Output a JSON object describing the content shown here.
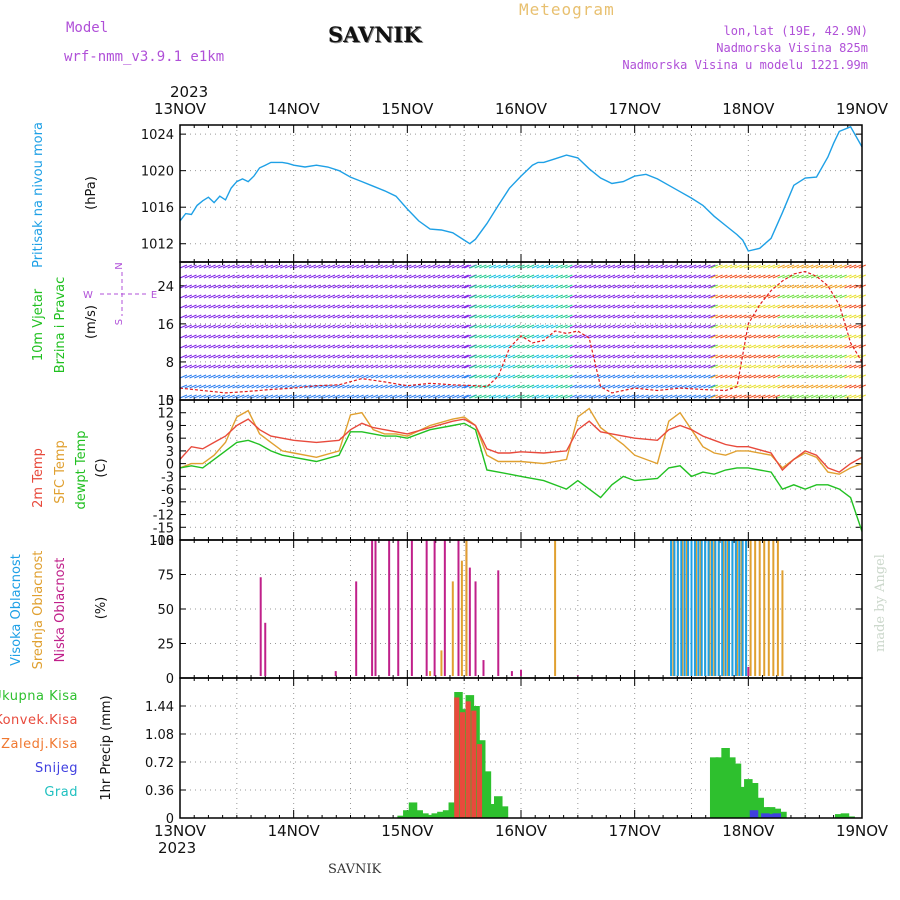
{
  "header": {
    "model_label": "Model",
    "model_name": "wrf-nmm_v3.9.1  e1km",
    "station": "SAVNIK",
    "meteogram_label": "Meteogram",
    "lonlat": "lon,lat (19E, 42.9N)",
    "elevation": "Nadmorska Visina 825m",
    "model_elevation": "Nadmorska Visina u modelu 1221.99m",
    "year_top": "2023",
    "year_bottom": "2023",
    "footer_station": "SAVNIK",
    "credit": "made by Angel"
  },
  "colors": {
    "pressure": "#1ea0e6",
    "t2m": "#e84a3c",
    "tsfc": "#e0a030",
    "dewpt": "#22c022",
    "high_cloud": "#1ea0e6",
    "mid_cloud": "#e0a030",
    "low_cloud": "#c0208a",
    "total_precip": "#2ec02e",
    "conv_precip": "#e84a3c",
    "frozen_precip": "#f07830",
    "snow": "#4040e0",
    "hail": "#20c0c0",
    "wind_purple": "#8a2be2"
  },
  "chart_data": [
    {
      "type": "line",
      "id": "pressure",
      "title": "",
      "ylabel_left": "Pritisak na nivou mora",
      "ylabel_unit": "(hPa)",
      "x_ticks": [
        "13NOV",
        "14NOV",
        "15NOV",
        "16NOV",
        "17NOV",
        "18NOV",
        "19NOV"
      ],
      "ylim": [
        1010,
        1025
      ],
      "y_ticks": [
        1012,
        1016,
        1020,
        1024
      ],
      "grid": true,
      "series": [
        {
          "key": "pressure",
          "x": [
            0,
            0.05,
            0.1,
            0.15,
            0.2,
            0.25,
            0.3,
            0.35,
            0.4,
            0.45,
            0.5,
            0.55,
            0.6,
            0.65,
            0.7,
            0.75,
            0.8,
            0.85,
            0.9,
            0.95,
            1.0,
            1.1,
            1.2,
            1.3,
            1.4,
            1.5,
            1.6,
            1.7,
            1.8,
            1.9,
            2.0,
            2.1,
            2.2,
            2.3,
            2.4,
            2.5,
            2.55,
            2.6,
            2.7,
            2.8,
            2.9,
            3.0,
            3.1,
            3.15,
            3.2,
            3.3,
            3.4,
            3.5,
            3.6,
            3.7,
            3.8,
            3.9,
            4.0,
            4.1,
            4.2,
            4.3,
            4.4,
            4.5,
            4.6,
            4.7,
            4.8,
            4.9,
            4.95,
            5.0,
            5.1,
            5.2,
            5.3,
            5.4,
            5.5,
            5.6,
            5.7,
            5.75,
            5.8,
            5.9,
            6.0
          ],
          "y": [
            1014.5,
            1015.3,
            1015.2,
            1016.2,
            1016.7,
            1017.1,
            1016.5,
            1017.2,
            1016.8,
            1018.1,
            1018.8,
            1019.1,
            1018.8,
            1019.4,
            1020.3,
            1020.6,
            1020.9,
            1020.9,
            1020.9,
            1020.8,
            1020.6,
            1020.4,
            1020.6,
            1020.4,
            1020.0,
            1019.3,
            1018.8,
            1018.3,
            1017.8,
            1017.2,
            1015.8,
            1014.5,
            1013.6,
            1013.5,
            1013.2,
            1012.4,
            1012.0,
            1012.5,
            1014.2,
            1016.2,
            1018.1,
            1019.4,
            1020.6,
            1020.9,
            1020.9,
            1021.3,
            1021.7,
            1021.4,
            1020.2,
            1019.2,
            1018.6,
            1018.8,
            1019.4,
            1019.6,
            1019.1,
            1018.4,
            1017.7,
            1017.0,
            1016.2,
            1015.0,
            1014.0,
            1013.0,
            1012.4,
            1011.2,
            1011.5,
            1012.6,
            1015.4,
            1018.4,
            1019.2,
            1019.3,
            1021.5,
            1023.0,
            1024.3,
            1024.8,
            1022.6
          ]
        }
      ]
    },
    {
      "type": "line",
      "id": "wind",
      "title": "",
      "ylabel_left": "10m Vjetar",
      "ylabel_left2": "Brzina i Pravac",
      "ylabel_unit": "(m/s)",
      "compass": [
        "N",
        "W",
        "E",
        "S"
      ],
      "ylim": [
        0,
        29
      ],
      "y_ticks": [
        0,
        8,
        16,
        24
      ],
      "grid": true,
      "series": [
        {
          "key": "wind_speed",
          "name": "",
          "x": [
            0,
            0.2,
            0.4,
            0.6,
            0.8,
            1.0,
            1.2,
            1.4,
            1.6,
            1.8,
            2.0,
            2.2,
            2.4,
            2.6,
            2.7,
            2.8,
            2.9,
            3.0,
            3.1,
            3.2,
            3.3,
            3.4,
            3.5,
            3.6,
            3.7,
            3.8,
            3.9,
            4.0,
            4.2,
            4.4,
            4.6,
            4.8,
            4.9,
            5.0,
            5.1,
            5.2,
            5.3,
            5.4,
            5.5,
            5.6,
            5.7,
            5.8,
            5.9,
            6.0
          ],
          "y": [
            2.5,
            2.0,
            1.5,
            1.8,
            2.2,
            2.5,
            3.0,
            3.2,
            4.5,
            3.8,
            3.0,
            3.5,
            3.2,
            3.0,
            2.8,
            5.0,
            11.0,
            13.5,
            12.0,
            12.5,
            14.5,
            14.0,
            14.5,
            13.0,
            2.8,
            1.5,
            2.0,
            2.5,
            2.0,
            2.5,
            2.2,
            2.0,
            2.8,
            16.0,
            20.0,
            23.0,
            25.0,
            26.5,
            27.0,
            26.0,
            24.0,
            20.0,
            12.0,
            8.0
          ]
        }
      ]
    },
    {
      "type": "line",
      "id": "temperature",
      "title": "",
      "ylabel_left": [
        "2m Temp",
        "SFC Temp",
        "dewpt Temp"
      ],
      "ylabel_unit": "(C)",
      "ylim": [
        -18,
        15
      ],
      "y_ticks": [
        15,
        12,
        9,
        6,
        3,
        0,
        -3,
        -6,
        -9,
        -12,
        -15,
        -18
      ],
      "grid": true,
      "series": [
        {
          "key": "t2m",
          "name": "2m Temp",
          "x": [
            0,
            0.1,
            0.2,
            0.3,
            0.4,
            0.5,
            0.6,
            0.7,
            0.8,
            0.9,
            1.0,
            1.2,
            1.4,
            1.5,
            1.6,
            1.7,
            1.8,
            1.9,
            2.0,
            2.2,
            2.4,
            2.5,
            2.6,
            2.7,
            2.8,
            2.9,
            3.0,
            3.2,
            3.4,
            3.5,
            3.6,
            3.7,
            3.8,
            3.9,
            4.0,
            4.2,
            4.3,
            4.4,
            4.5,
            4.6,
            4.7,
            4.8,
            4.9,
            5.0,
            5.2,
            5.3,
            5.4,
            5.5,
            5.6,
            5.7,
            5.8,
            5.9,
            6.0
          ],
          "y": [
            1,
            4,
            3.5,
            5,
            6.5,
            9,
            10.5,
            8,
            6.5,
            6,
            5.5,
            5,
            5.5,
            8,
            9.5,
            8.5,
            8,
            7.5,
            7,
            8.5,
            10,
            10.5,
            9,
            3.5,
            2.5,
            2.5,
            2.8,
            2.5,
            3,
            8,
            10,
            7.5,
            7,
            6.5,
            6,
            5.5,
            8,
            9,
            8,
            6.5,
            5.5,
            4.5,
            4,
            4,
            2.5,
            -1.5,
            1,
            3,
            2,
            -1,
            -2,
            0,
            1.5
          ]
        },
        {
          "key": "tsfc",
          "name": "SFC Temp",
          "x": [
            0,
            0.1,
            0.2,
            0.3,
            0.4,
            0.5,
            0.6,
            0.7,
            0.8,
            0.9,
            1.0,
            1.2,
            1.4,
            1.5,
            1.6,
            1.7,
            1.8,
            1.9,
            2.0,
            2.2,
            2.4,
            2.5,
            2.6,
            2.7,
            2.8,
            2.9,
            3.0,
            3.2,
            3.4,
            3.5,
            3.6,
            3.7,
            3.8,
            3.9,
            4.0,
            4.2,
            4.3,
            4.4,
            4.5,
            4.6,
            4.7,
            4.8,
            4.9,
            5.0,
            5.2,
            5.3,
            5.4,
            5.5,
            5.6,
            5.7,
            5.8,
            5.9,
            6.0
          ],
          "y": [
            -1,
            0,
            0,
            2,
            5,
            11,
            12.5,
            7,
            5,
            3,
            2.5,
            1.5,
            3,
            11.5,
            12,
            8,
            7,
            7,
            6.5,
            9,
            10.5,
            11,
            9,
            2,
            0.5,
            0.5,
            0.5,
            0,
            1,
            11,
            13,
            8.5,
            6.5,
            4.5,
            2,
            0,
            10,
            12,
            8,
            4,
            2.5,
            2,
            3,
            3,
            2,
            -1,
            1,
            2.5,
            1.5,
            -2,
            -2.5,
            -1,
            0
          ]
        },
        {
          "key": "dewpt",
          "name": "dewpt Temp",
          "x": [
            0,
            0.1,
            0.2,
            0.3,
            0.4,
            0.5,
            0.6,
            0.7,
            0.8,
            0.9,
            1.0,
            1.2,
            1.4,
            1.5,
            1.6,
            1.7,
            1.8,
            1.9,
            2.0,
            2.2,
            2.4,
            2.5,
            2.6,
            2.7,
            2.8,
            2.9,
            3.0,
            3.2,
            3.4,
            3.5,
            3.6,
            3.7,
            3.8,
            3.9,
            4.0,
            4.2,
            4.3,
            4.4,
            4.5,
            4.6,
            4.7,
            4.8,
            4.9,
            5.0,
            5.2,
            5.3,
            5.4,
            5.5,
            5.6,
            5.7,
            5.8,
            5.9,
            6.0
          ],
          "y": [
            -1,
            -0.5,
            -1,
            1,
            3,
            5,
            5.5,
            4.5,
            3,
            2,
            1.5,
            0.5,
            2,
            7.5,
            7.5,
            7,
            6.5,
            6.5,
            6,
            8,
            9,
            9.5,
            8,
            -1.5,
            -2,
            -2.5,
            -3,
            -4,
            -6,
            -4,
            -6,
            -8,
            -5,
            -3,
            -4,
            -3.5,
            -1,
            -0.5,
            -3,
            -2,
            -2.5,
            -1.5,
            -1,
            -1,
            -2,
            -6,
            -5,
            -6,
            -5,
            -5,
            -6,
            -8,
            -16
          ]
        }
      ]
    },
    {
      "type": "bar",
      "id": "cloud",
      "title": "",
      "ylabel_left": [
        "Visoka Oblacnost",
        "Srednja Oblacnost",
        "Niska Oblacnost"
      ],
      "ylabel_unit": "(%)",
      "ylim": [
        0,
        100
      ],
      "y_ticks": [
        0,
        25,
        50,
        75,
        100
      ],
      "grid": true,
      "series": [
        {
          "key": "low_cloud",
          "name": "Niska Oblacnost",
          "x": [
            0.71,
            0.75,
            1.37,
            1.55,
            1.69,
            1.72,
            1.84,
            1.92,
            2.04,
            2.17,
            2.24,
            2.33,
            2.45,
            2.52,
            2.55,
            2.6,
            2.67,
            2.8,
            2.92,
            3.0,
            3.5,
            4.9,
            5.0
          ],
          "y": [
            73,
            40,
            5,
            70,
            100,
            100,
            100,
            100,
            100,
            100,
            100,
            100,
            100,
            100,
            80,
            70,
            13,
            78,
            5,
            6,
            2,
            10,
            8
          ]
        },
        {
          "key": "mid_cloud",
          "name": "Srednja Oblacnost",
          "x": [
            2.2,
            2.3,
            2.4,
            2.48,
            2.52,
            3.3,
            4.34,
            4.38,
            4.42,
            4.46,
            4.5,
            4.54,
            4.58,
            4.62,
            4.66,
            4.7,
            4.74,
            4.78,
            4.82,
            4.86,
            4.9,
            4.94,
            4.98,
            5.02,
            5.06,
            5.1,
            5.14,
            5.18,
            5.22,
            5.26,
            5.3
          ],
          "y": [
            5,
            20,
            70,
            85,
            100,
            100,
            100,
            100,
            100,
            100,
            100,
            100,
            100,
            100,
            100,
            100,
            100,
            100,
            100,
            100,
            100,
            100,
            100,
            100,
            100,
            100,
            100,
            100,
            100,
            100,
            78
          ]
        },
        {
          "key": "high_cloud",
          "name": "Visoka Oblacnost",
          "x": [
            4.32,
            4.35,
            4.38,
            4.41,
            4.44,
            4.47,
            4.5,
            4.53,
            4.56,
            4.59,
            4.62,
            4.65,
            4.68,
            4.71,
            4.74,
            4.77,
            4.8,
            4.83,
            4.86,
            4.89,
            4.92,
            4.95,
            4.98
          ],
          "y": [
            100,
            100,
            100,
            100,
            100,
            100,
            100,
            100,
            100,
            100,
            100,
            100,
            100,
            100,
            100,
            100,
            100,
            100,
            100,
            100,
            100,
            100,
            100
          ]
        }
      ]
    },
    {
      "type": "bar",
      "id": "precip",
      "title": "",
      "ylabel_unit": "1hr Precip (mm)",
      "legend": [
        "Ukupna Kisa",
        "Konvek.Kisa",
        "Zaledj.Kisa",
        "Snijeg",
        "Grad"
      ],
      "ylim": [
        0,
        1.8
      ],
      "y_ticks": [
        0,
        0.36,
        0.72,
        1.08,
        1.44
      ],
      "grid": true,
      "series": [
        {
          "key": "total_precip",
          "name": "Ukupna Kisa",
          "x": [
            1.95,
            2.0,
            2.05,
            2.1,
            2.15,
            2.2,
            2.25,
            2.3,
            2.35,
            2.4,
            2.45,
            2.5,
            2.55,
            2.6,
            2.65,
            2.7,
            2.75,
            2.8,
            2.85,
            4.7,
            4.75,
            4.8,
            4.85,
            4.9,
            4.95,
            5.0,
            5.05,
            5.1,
            5.15,
            5.2,
            5.25,
            5.3,
            5.8,
            5.85,
            5.9
          ],
          "y": [
            0.03,
            0.1,
            0.2,
            0.1,
            0.06,
            0.04,
            0.06,
            0.08,
            0.1,
            0.2,
            1.62,
            1.4,
            1.58,
            1.44,
            1.0,
            0.6,
            0.18,
            0.28,
            0.15,
            0.78,
            0.78,
            0.9,
            0.78,
            0.7,
            0.4,
            0.5,
            0.45,
            0.26,
            0.14,
            0.14,
            0.12,
            0.08,
            0.05,
            0.06,
            0.02
          ]
        },
        {
          "key": "conv_precip",
          "name": "Konvek.Kisa",
          "x": [
            2.45,
            2.5,
            2.55,
            2.6,
            2.65
          ],
          "y": [
            1.55,
            1.36,
            1.5,
            1.38,
            0.95
          ]
        },
        {
          "key": "snow",
          "name": "Snijeg",
          "x": [
            5.05,
            5.15,
            5.2,
            5.25
          ],
          "y": [
            0.1,
            0.06,
            0.05,
            0.06
          ]
        }
      ]
    }
  ]
}
